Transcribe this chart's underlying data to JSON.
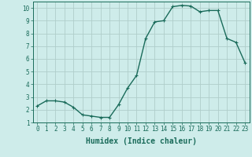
{
  "x": [
    0,
    1,
    2,
    3,
    4,
    5,
    6,
    7,
    8,
    9,
    10,
    11,
    12,
    13,
    14,
    15,
    16,
    17,
    18,
    19,
    20,
    21,
    22,
    23
  ],
  "y": [
    2.3,
    2.7,
    2.7,
    2.6,
    2.2,
    1.6,
    1.5,
    1.4,
    1.4,
    2.4,
    3.7,
    4.7,
    7.6,
    8.9,
    9.0,
    10.1,
    10.2,
    10.15,
    9.7,
    9.8,
    9.8,
    7.6,
    7.3,
    5.7
  ],
  "line_color": "#1a6b5a",
  "marker": "+",
  "markersize": 3,
  "linewidth": 1.0,
  "markeredgewidth": 0.8,
  "xlabel": "Humidex (Indice chaleur)",
  "xlim": [
    -0.5,
    23.5
  ],
  "ylim": [
    1,
    10.5
  ],
  "yticks": [
    1,
    2,
    3,
    4,
    5,
    6,
    7,
    8,
    9,
    10
  ],
  "xticks": [
    0,
    1,
    2,
    3,
    4,
    5,
    6,
    7,
    8,
    9,
    10,
    11,
    12,
    13,
    14,
    15,
    16,
    17,
    18,
    19,
    20,
    21,
    22,
    23
  ],
  "bg_color": "#ceecea",
  "grid_color": "#b0ceca",
  "line_dark": "#1a6b5a",
  "xlabel_fontsize": 7,
  "tick_fontsize": 5.5
}
